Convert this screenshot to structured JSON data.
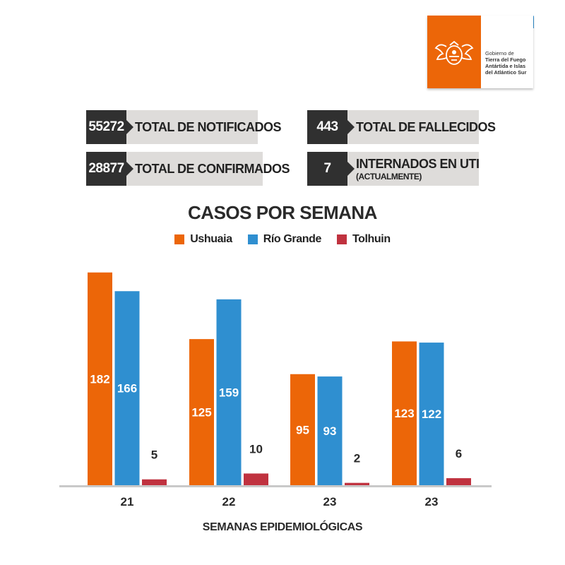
{
  "logo": {
    "line1": "Gobierno de",
    "line2": "Tierra del Fuego",
    "line3": "Antártida e Islas",
    "line4": "del Atlántico Sur"
  },
  "stats": [
    {
      "value": "55272",
      "label": "TOTAL DE NOTIFICADOS"
    },
    {
      "value": "443",
      "label": "TOTAL DE FALLECIDOS"
    },
    {
      "value": "28877",
      "label": "TOTAL DE CONFIRMADOS"
    },
    {
      "value": "7",
      "label": "INTERNADOS EN UTI",
      "sublabel": "(ACTUALMENTE)"
    }
  ],
  "colors": {
    "ushuaia": "#ec6608",
    "rio_grande": "#2f8fd0",
    "tolhuin": "#c0323f"
  },
  "chart_data": {
    "type": "bar",
    "title": "CASOS POR SEMANA",
    "xlabel": "SEMANAS EPIDEMIOLÓGICAS",
    "ylabel": "",
    "categories": [
      "21",
      "22",
      "23",
      "23"
    ],
    "series": [
      {
        "name": "Ushuaia",
        "values": [
          182,
          125,
          95,
          123
        ]
      },
      {
        "name": "Río Grande",
        "values": [
          166,
          159,
          93,
          122
        ]
      },
      {
        "name": "Tolhuin",
        "values": [
          5,
          10,
          2,
          6
        ]
      }
    ],
    "ylim": [
      0,
      200
    ],
    "legend": "top-center",
    "grid": false
  }
}
